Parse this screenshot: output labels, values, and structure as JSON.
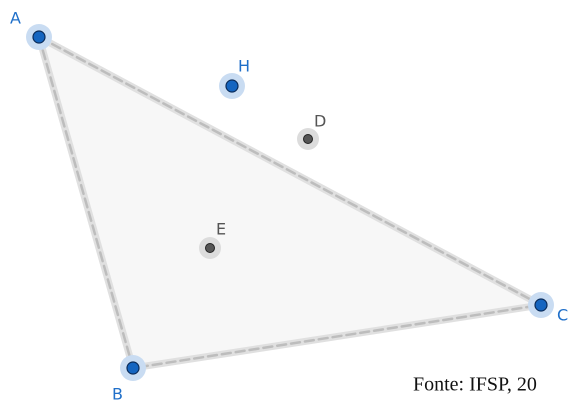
{
  "points": [
    {
      "label": "A"
    },
    {
      "label": "B"
    },
    {
      "label": "C"
    },
    {
      "label": "D"
    },
    {
      "label": "E"
    },
    {
      "label": "H"
    }
  ],
  "caption": "Fonte: IFSP, 20"
}
